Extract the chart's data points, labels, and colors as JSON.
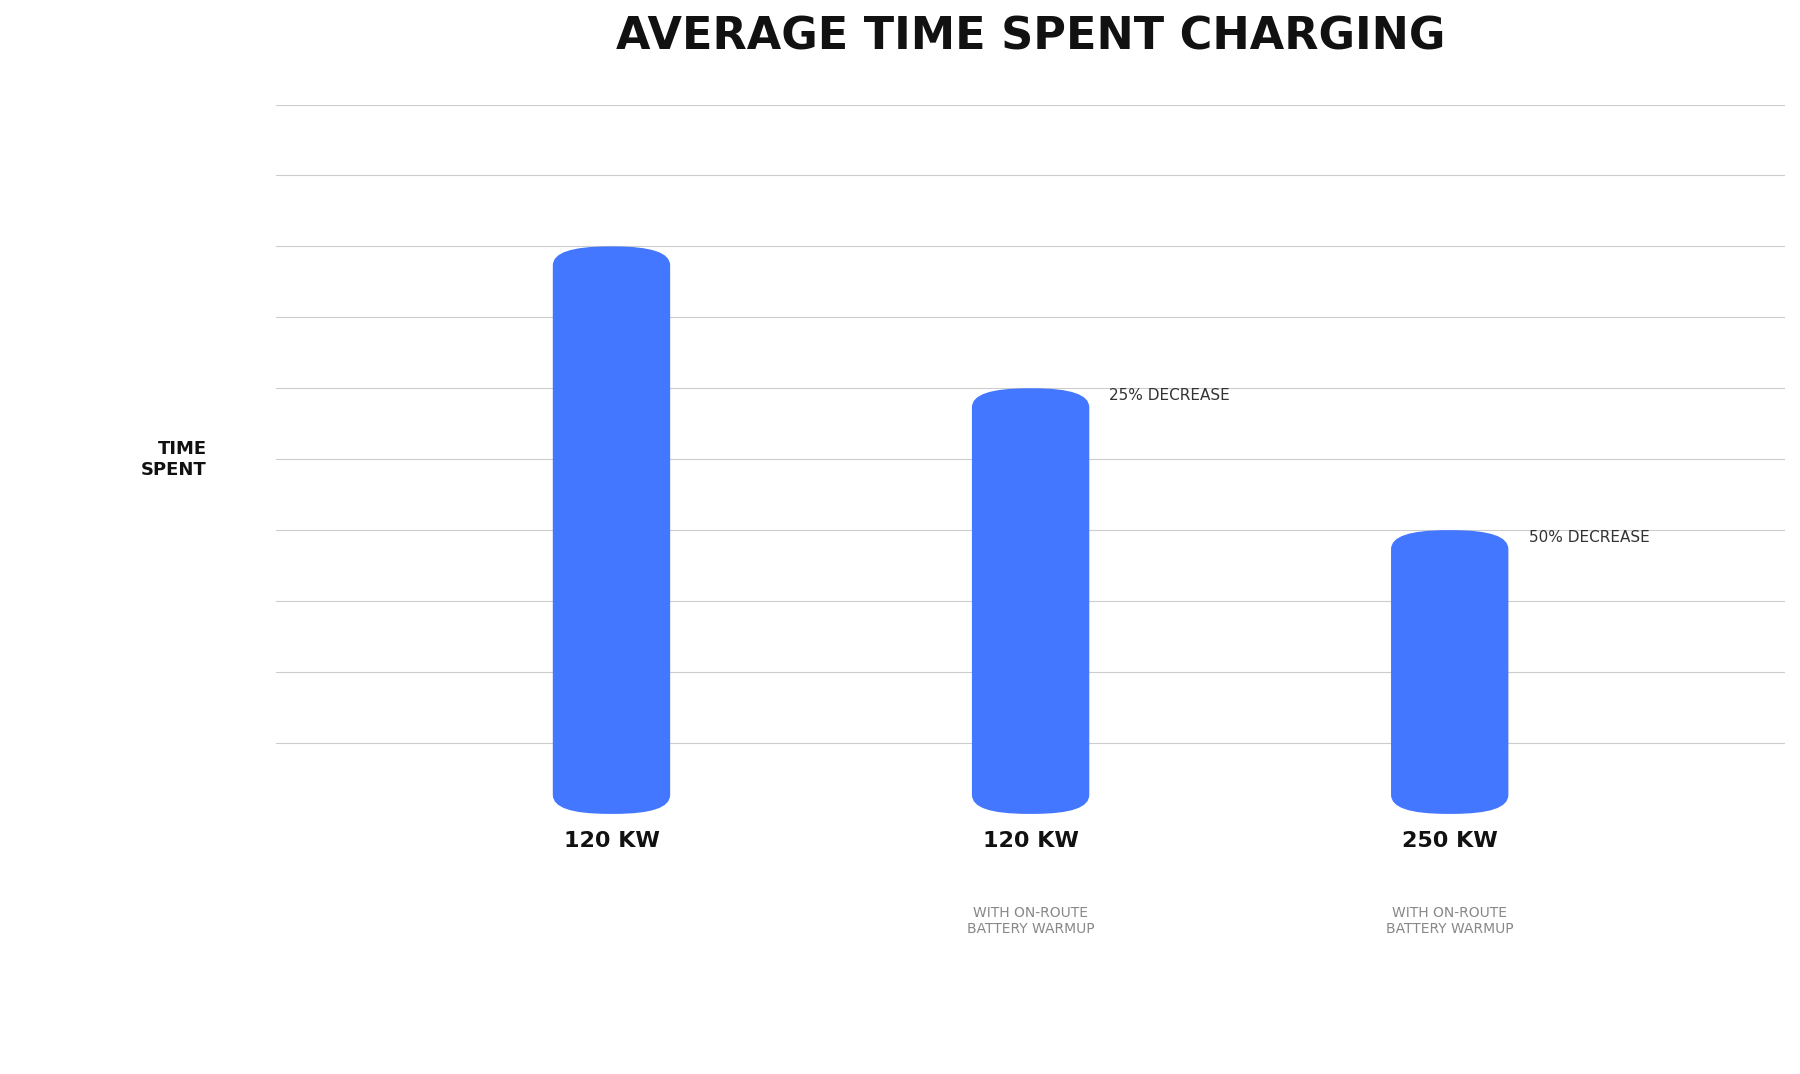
{
  "title": "AVERAGE TIME SPENT CHARGING",
  "title_fontsize": 32,
  "title_fontweight": "bold",
  "background_color": "#ffffff",
  "bar_color": "#4477ff",
  "categories": [
    "120 KW",
    "120 KW",
    "250 KW"
  ],
  "sublabels": [
    "",
    "WITH ON-ROUTE\nBATTERY WARMUP",
    "WITH ON-ROUTE\nBATTERY WARMUP"
  ],
  "values": [
    1.0,
    0.75,
    0.5
  ],
  "annotations": [
    "",
    "25% DECREASE",
    "50% DECREASE"
  ],
  "ylabel": "TIME\nSPENT",
  "ylabel_fontsize": 13,
  "bar_width": 0.07,
  "x_positions": [
    0.3,
    0.55,
    0.8
  ],
  "xlim": [
    0.1,
    1.0
  ],
  "ylim": [
    0,
    1.25
  ],
  "annotation_fontsize": 11,
  "category_fontsize": 16,
  "sublabel_fontsize": 10,
  "grid_color": "#cccccc",
  "grid_linewidth": 0.8,
  "n_gridlines": 10
}
